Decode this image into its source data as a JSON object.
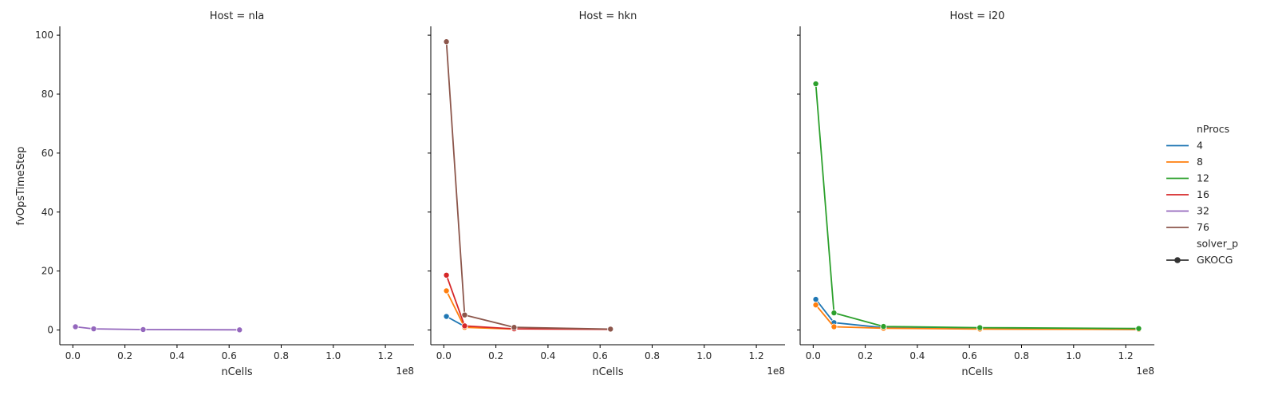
{
  "chart_data": {
    "type": "line",
    "ylabel": "fvOpsTimeStep",
    "xlabel": "nCells",
    "x_offset_text": "1e8",
    "x_ticks": [
      0.0,
      0.2,
      0.4,
      0.6,
      0.8,
      1.0,
      1.2
    ],
    "x_tick_labels": [
      "0.0",
      "0.2",
      "0.4",
      "0.6",
      "0.8",
      "1.0",
      "1.2"
    ],
    "y_ticks": [
      0,
      20,
      40,
      60,
      80,
      100
    ],
    "y_tick_labels": [
      "0",
      "20",
      "40",
      "60",
      "80",
      "100"
    ],
    "xlim": [
      -0.05,
      1.31
    ],
    "ylim": [
      -5,
      103
    ],
    "grid": false,
    "legend": {
      "placement": "right",
      "hue_title": "nProcs",
      "style_title": "solver_p",
      "style_entries": [
        "GKOCG"
      ],
      "entries": [
        {
          "label": "4",
          "color": "#1f77b4"
        },
        {
          "label": "8",
          "color": "#ff7f0e"
        },
        {
          "label": "12",
          "color": "#2ca02c"
        },
        {
          "label": "16",
          "color": "#d62728"
        },
        {
          "label": "32",
          "color": "#9467bd"
        },
        {
          "label": "76",
          "color": "#8c564b"
        }
      ]
    },
    "panels": [
      {
        "title": "Host = nla",
        "series": [
          {
            "name": "32",
            "color": "#9467bd",
            "x": [
              0.01,
              0.08,
              0.27,
              0.64
            ],
            "y": [
              1.1,
              0.4,
              0.15,
              0.05
            ]
          }
        ]
      },
      {
        "title": "Host = hkn",
        "series": [
          {
            "name": "4",
            "color": "#1f77b4",
            "x": [
              0.01,
              0.08
            ],
            "y": [
              4.6,
              1.2
            ]
          },
          {
            "name": "8",
            "color": "#ff7f0e",
            "x": [
              0.01,
              0.08,
              0.27
            ],
            "y": [
              13.3,
              0.9,
              0.3
            ]
          },
          {
            "name": "16",
            "color": "#d62728",
            "x": [
              0.01,
              0.08,
              0.27,
              0.64
            ],
            "y": [
              18.6,
              1.4,
              0.4,
              0.2
            ]
          },
          {
            "name": "76",
            "color": "#8c564b",
            "x": [
              0.01,
              0.08,
              0.27,
              0.64
            ],
            "y": [
              97.8,
              5.1,
              0.9,
              0.3
            ]
          }
        ]
      },
      {
        "title": "Host = i20",
        "series": [
          {
            "name": "4",
            "color": "#1f77b4",
            "x": [
              0.01,
              0.08,
              0.27,
              0.64,
              1.25
            ],
            "y": [
              10.4,
              2.5,
              0.8,
              0.4,
              0.2
            ]
          },
          {
            "name": "8",
            "color": "#ff7f0e",
            "x": [
              0.01,
              0.08,
              0.27,
              0.64,
              1.25
            ],
            "y": [
              8.5,
              1.1,
              0.6,
              0.3,
              0.2
            ]
          },
          {
            "name": "12",
            "color": "#2ca02c",
            "x": [
              0.01,
              0.08,
              0.27,
              0.64,
              1.25
            ],
            "y": [
              83.5,
              5.8,
              1.2,
              0.8,
              0.5
            ]
          }
        ]
      }
    ]
  }
}
